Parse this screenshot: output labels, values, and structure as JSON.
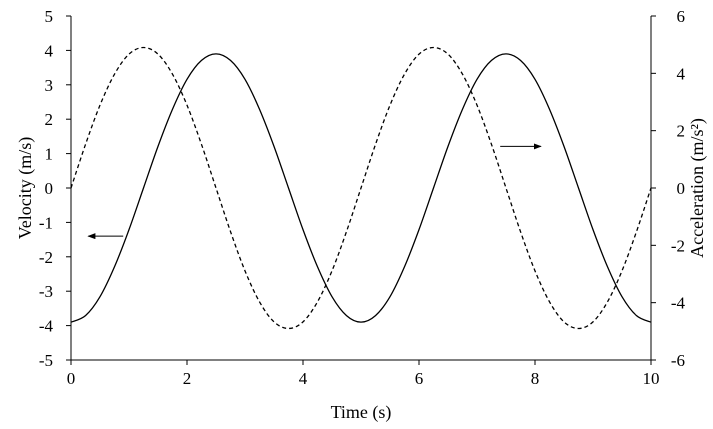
{
  "chart_data": {
    "type": "line",
    "xlabel": "Time (s)",
    "ylabel": "Velocity (m/s)",
    "y2label": "Acceleration (m/s²)",
    "xlim": [
      0,
      10
    ],
    "ylim": [
      -5,
      5
    ],
    "y2lim": [
      -6,
      6
    ],
    "xticks": [
      0,
      2,
      4,
      6,
      8,
      10
    ],
    "yticks": [
      -5,
      -4,
      -3,
      -2,
      -1,
      0,
      1,
      2,
      3,
      4,
      5
    ],
    "y2ticks": [
      -6,
      -4,
      -2,
      0,
      2,
      4,
      6
    ],
    "grid": false,
    "series": [
      {
        "axis": "left",
        "style": "solid",
        "color": "#000000",
        "x": [
          0,
          0.25,
          0.5,
          0.75,
          1,
          1.25,
          1.5,
          1.75,
          2,
          2.25,
          2.5,
          2.75,
          3,
          3.25,
          3.5,
          3.75,
          4,
          4.25,
          4.5,
          4.75,
          5,
          5.25,
          5.5,
          5.75,
          6,
          6.25,
          6.5,
          6.75,
          7,
          7.25,
          7.5,
          7.75,
          8,
          8.25,
          8.5,
          8.75,
          9,
          9.25,
          9.5,
          9.75,
          10
        ],
        "y": [
          -3.9,
          -3.71,
          -3.16,
          -2.29,
          -1.21,
          0,
          1.21,
          2.29,
          3.16,
          3.71,
          3.9,
          3.71,
          3.16,
          2.29,
          1.21,
          0,
          -1.21,
          -2.29,
          -3.16,
          -3.71,
          -3.9,
          -3.71,
          -3.16,
          -2.29,
          -1.21,
          0,
          1.21,
          2.29,
          3.16,
          3.71,
          3.9,
          3.71,
          3.16,
          2.29,
          1.21,
          0,
          -1.21,
          -2.29,
          -3.16,
          -3.71,
          -3.9
        ]
      },
      {
        "axis": "right",
        "style": "dashed",
        "color": "#000000",
        "x": [
          0,
          0.25,
          0.5,
          0.75,
          1,
          1.25,
          1.5,
          1.75,
          2,
          2.25,
          2.5,
          2.75,
          3,
          3.25,
          3.5,
          3.75,
          4,
          4.25,
          4.5,
          4.75,
          5,
          5.25,
          5.5,
          5.75,
          6,
          6.25,
          6.5,
          6.75,
          7,
          7.25,
          7.5,
          7.75,
          8,
          8.25,
          8.5,
          8.75,
          9,
          9.25,
          9.5,
          9.75,
          10
        ],
        "y": [
          0,
          1.52,
          2.89,
          3.97,
          4.67,
          4.9,
          4.67,
          3.97,
          2.89,
          1.52,
          0,
          -1.52,
          -2.89,
          -3.97,
          -4.67,
          -4.9,
          -4.67,
          -3.97,
          -2.89,
          -1.52,
          0,
          1.52,
          2.89,
          3.97,
          4.67,
          4.9,
          4.67,
          3.97,
          2.89,
          1.52,
          0,
          -1.52,
          -2.89,
          -3.97,
          -4.67,
          -4.9,
          -4.67,
          -3.97,
          -2.89,
          -1.52,
          0
        ]
      }
    ],
    "annotations": [
      {
        "type": "arrow",
        "direction": "left",
        "axis": "left",
        "x_from": 0.9,
        "x_to": 0.3,
        "y": -1.4
      },
      {
        "type": "arrow",
        "direction": "right",
        "axis": "right",
        "x_from": 7.4,
        "x_to": 8.1,
        "y": 1.45
      }
    ]
  }
}
